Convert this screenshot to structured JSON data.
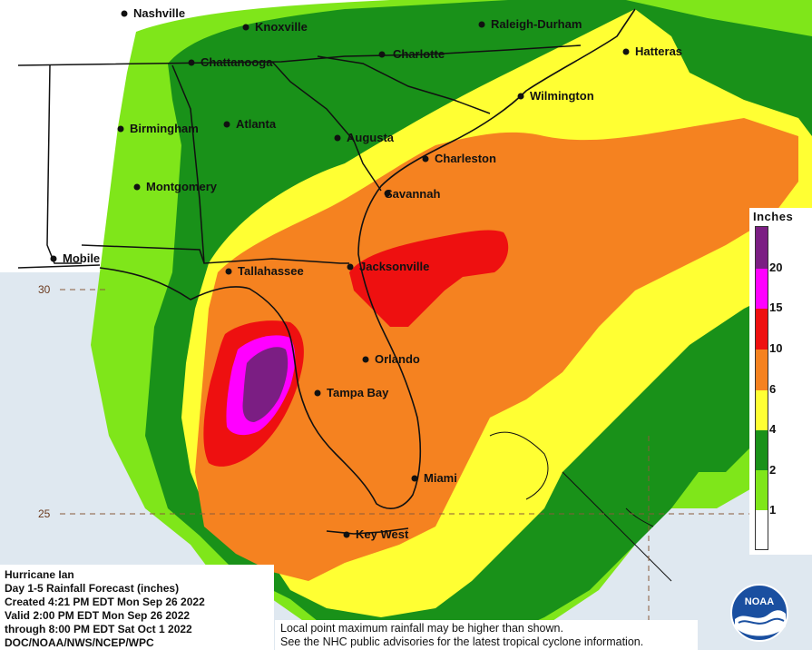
{
  "cities": [
    {
      "name": "Nashville"
    },
    {
      "name": "Knoxville"
    },
    {
      "name": "Raleigh-Durham"
    },
    {
      "name": "Chattanooga"
    },
    {
      "name": "Charlotte"
    },
    {
      "name": "Hatteras"
    },
    {
      "name": "Wilmington"
    },
    {
      "name": "Birmingham"
    },
    {
      "name": "Atlanta"
    },
    {
      "name": "Augusta"
    },
    {
      "name": "Charleston"
    },
    {
      "name": "Montgomery"
    },
    {
      "name": "Savannah"
    },
    {
      "name": "Mobile"
    },
    {
      "name": "Tallahassee"
    },
    {
      "name": "Jacksonville"
    },
    {
      "name": "Orlando"
    },
    {
      "name": "Tampa Bay"
    },
    {
      "name": "Miami"
    },
    {
      "name": "Key West"
    }
  ],
  "latitudes": [
    "30",
    "25"
  ],
  "legend": {
    "title": "Inches",
    "ticks": [
      "20",
      "15",
      "10",
      "6",
      "4",
      "2",
      "1"
    ],
    "colors": [
      "#7b1e83",
      "#ff00ff",
      "#ee1010",
      "#f58220",
      "#ffff33",
      "#199119",
      "#7fe61a",
      "#ffffff"
    ]
  },
  "info": {
    "line1": "Hurricane Ian",
    "line2": "Day 1-5 Rainfall Forecast (inches)",
    "line3": "Created 4:21 PM EDT Mon Sep 26 2022",
    "line4": "Valid 2:00 PM EDT Mon Sep 26 2022",
    "line5": "through 8:00 PM EDT Sat Oct 1 2022",
    "line6": "DOC/NOAA/NWS/NCEP/WPC"
  },
  "disclaimer": {
    "line1": "Local point maximum rainfall may be higher than shown.",
    "line2": "See the NHC public advisories for the latest tropical cyclone information."
  },
  "logo": {
    "text": "NOAA"
  }
}
